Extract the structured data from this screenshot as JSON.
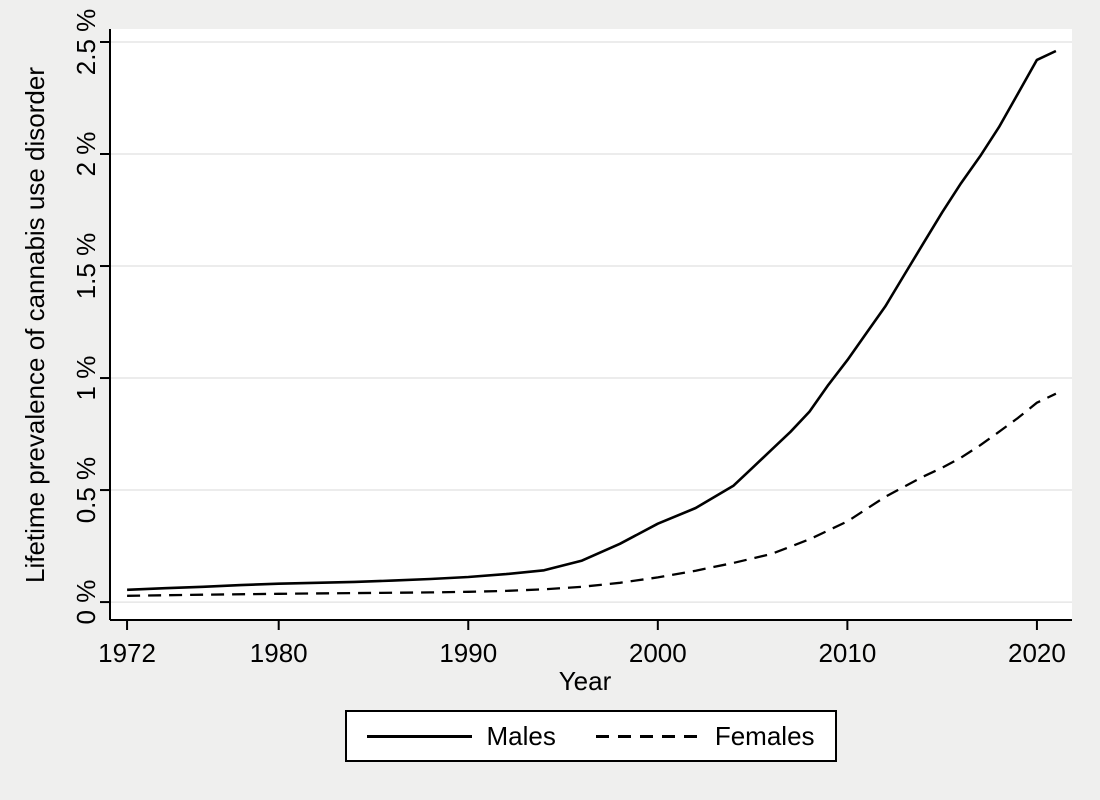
{
  "figure": {
    "background_color": "#efefee",
    "plot_background_color": "#ffffff",
    "gridline_color": "#e6e6e6",
    "axis_color": "#000000",
    "line_color": "#000000"
  },
  "chart_data": {
    "type": "line",
    "title": "",
    "xlabel": "Year",
    "ylabel": "Lifetime prevalence of cannabis use disorder",
    "xlim": [
      1971.1,
      2021.85
    ],
    "ylim": [
      -0.08,
      2.558
    ],
    "x_ticks": [
      1972,
      1980,
      1990,
      2000,
      2010,
      2020
    ],
    "x_tick_labels": [
      "1972",
      "1980",
      "1990",
      "2000",
      "2010",
      "2020"
    ],
    "y_ticks": [
      0,
      0.5,
      1,
      1.5,
      2,
      2.5
    ],
    "y_tick_labels": [
      "0 %",
      "0.5 %",
      "1 %",
      "1.5 %",
      "2 %",
      "2.5 %"
    ],
    "grid": "horizontal-only",
    "legend_position": "bottom-center",
    "series": [
      {
        "name": "Males",
        "line_style": "solid",
        "color": "#000000",
        "points": [
          [
            1972,
            0.055
          ],
          [
            1974,
            0.062
          ],
          [
            1976,
            0.068
          ],
          [
            1978,
            0.076
          ],
          [
            1980,
            0.082
          ],
          [
            1982,
            0.086
          ],
          [
            1984,
            0.09
          ],
          [
            1986,
            0.096
          ],
          [
            1988,
            0.103
          ],
          [
            1990,
            0.112
          ],
          [
            1992,
            0.125
          ],
          [
            1994,
            0.142
          ],
          [
            1996,
            0.185
          ],
          [
            1998,
            0.26
          ],
          [
            2000,
            0.35
          ],
          [
            2002,
            0.42
          ],
          [
            2004,
            0.52
          ],
          [
            2005,
            0.6
          ],
          [
            2006,
            0.68
          ],
          [
            2007,
            0.76
          ],
          [
            2008,
            0.85
          ],
          [
            2009,
            0.97
          ],
          [
            2010,
            1.08
          ],
          [
            2011,
            1.2
          ],
          [
            2012,
            1.32
          ],
          [
            2013,
            1.46
          ],
          [
            2014,
            1.6
          ],
          [
            2015,
            1.74
          ],
          [
            2016,
            1.87
          ],
          [
            2017,
            1.99
          ],
          [
            2018,
            2.12
          ],
          [
            2019,
            2.27
          ],
          [
            2020,
            2.42
          ],
          [
            2021,
            2.46
          ]
        ]
      },
      {
        "name": "Females",
        "line_style": "dashed",
        "color": "#000000",
        "points": [
          [
            1972,
            0.028
          ],
          [
            1976,
            0.033
          ],
          [
            1980,
            0.037
          ],
          [
            1984,
            0.04
          ],
          [
            1988,
            0.043
          ],
          [
            1990,
            0.046
          ],
          [
            1992,
            0.05
          ],
          [
            1994,
            0.057
          ],
          [
            1996,
            0.068
          ],
          [
            1998,
            0.086
          ],
          [
            2000,
            0.11
          ],
          [
            2002,
            0.14
          ],
          [
            2004,
            0.175
          ],
          [
            2006,
            0.215
          ],
          [
            2008,
            0.28
          ],
          [
            2010,
            0.36
          ],
          [
            2011,
            0.415
          ],
          [
            2012,
            0.47
          ],
          [
            2013,
            0.515
          ],
          [
            2014,
            0.56
          ],
          [
            2015,
            0.6
          ],
          [
            2016,
            0.645
          ],
          [
            2017,
            0.7
          ],
          [
            2018,
            0.76
          ],
          [
            2019,
            0.822
          ],
          [
            2020,
            0.89
          ],
          [
            2021,
            0.93
          ]
        ]
      }
    ]
  }
}
